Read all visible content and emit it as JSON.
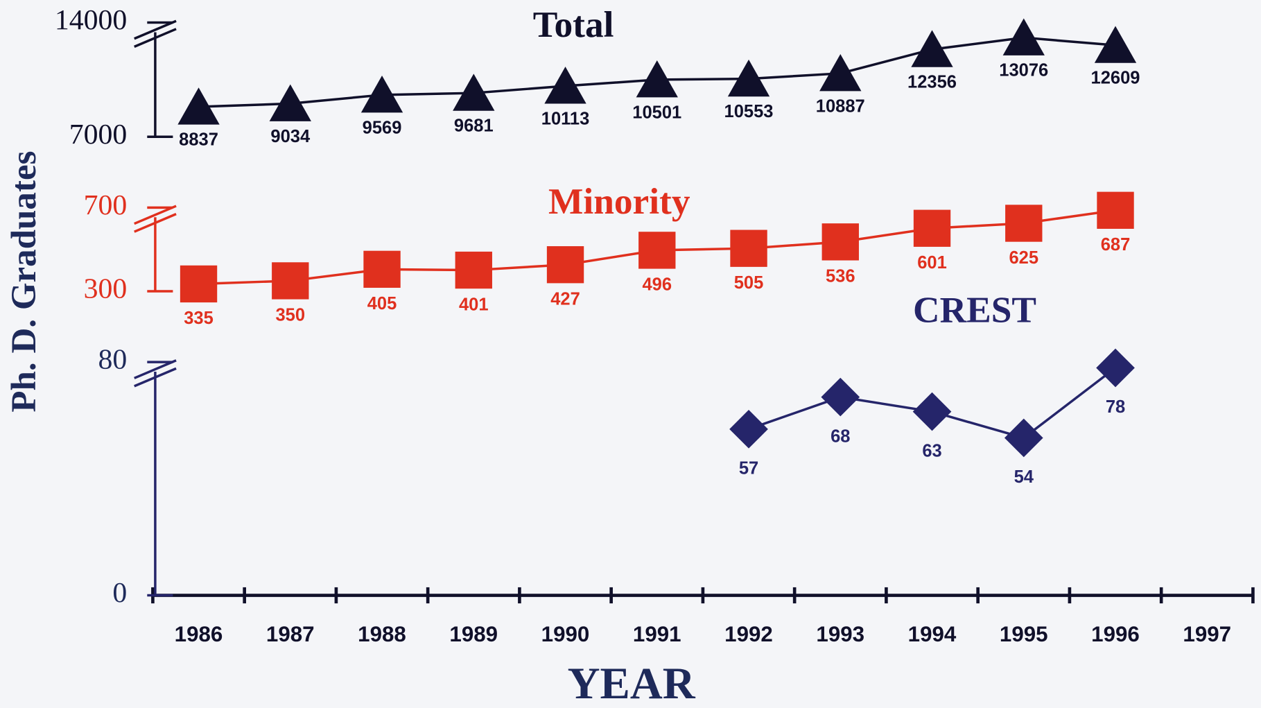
{
  "chart_data": {
    "type": "line",
    "x_label": "YEAR",
    "y_label": "Ph. D. Graduates",
    "categories": [
      "1986",
      "1987",
      "1988",
      "1989",
      "1990",
      "1991",
      "1992",
      "1993",
      "1994",
      "1995",
      "1996",
      "1997"
    ],
    "series": [
      {
        "name": "Total",
        "color": "#10102a",
        "marker": "triangle",
        "values": [
          8837,
          9034,
          9569,
          9681,
          10113,
          10501,
          10553,
          10887,
          12356,
          13076,
          12609,
          null
        ],
        "ylim": [
          7000,
          14000
        ],
        "yticks": [
          7000,
          14000
        ]
      },
      {
        "name": "Minority",
        "color": "#e0301e",
        "marker": "square",
        "values": [
          335,
          350,
          405,
          401,
          427,
          496,
          505,
          536,
          601,
          625,
          687,
          null
        ],
        "ylim": [
          300,
          700
        ],
        "yticks": [
          300,
          700
        ]
      },
      {
        "name": "CREST",
        "color": "#25256a",
        "marker": "diamond",
        "values": [
          null,
          null,
          null,
          null,
          null,
          null,
          57,
          68,
          63,
          54,
          78,
          null
        ],
        "ylim": [
          0,
          80
        ],
        "yticks": [
          0,
          80
        ]
      }
    ]
  }
}
